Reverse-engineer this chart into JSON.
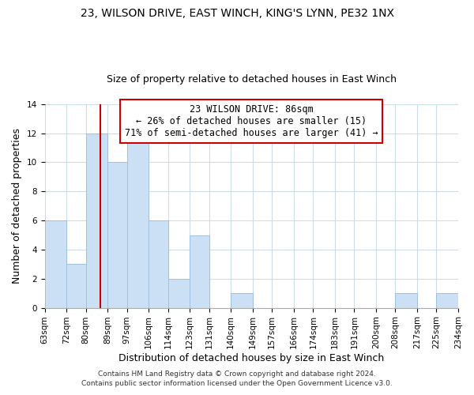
{
  "title_line1": "23, WILSON DRIVE, EAST WINCH, KING'S LYNN, PE32 1NX",
  "title_line2": "Size of property relative to detached houses in East Winch",
  "xlabel": "Distribution of detached houses by size in East Winch",
  "ylabel": "Number of detached properties",
  "bin_edges": [
    63,
    72,
    80,
    89,
    97,
    106,
    114,
    123,
    131,
    140,
    149,
    157,
    166,
    174,
    183,
    191,
    200,
    208,
    217,
    225,
    234
  ],
  "bin_labels": [
    "63sqm",
    "72sqm",
    "80sqm",
    "89sqm",
    "97sqm",
    "106sqm",
    "114sqm",
    "123sqm",
    "131sqm",
    "140sqm",
    "149sqm",
    "157sqm",
    "166sqm",
    "174sqm",
    "183sqm",
    "191sqm",
    "200sqm",
    "208sqm",
    "217sqm",
    "225sqm",
    "234sqm"
  ],
  "counts": [
    6,
    3,
    12,
    10,
    12,
    6,
    2,
    5,
    0,
    1,
    0,
    0,
    0,
    0,
    0,
    0,
    0,
    1,
    0,
    1
  ],
  "bar_color": "#cce0f5",
  "bar_edgecolor": "#a0c0e0",
  "vline_color": "#cc0000",
  "vline_x": 86,
  "annotation_title": "23 WILSON DRIVE: 86sqm",
  "annotation_line2": "← 26% of detached houses are smaller (15)",
  "annotation_line3": "71% of semi-detached houses are larger (41) →",
  "annotation_box_edgecolor": "#cc0000",
  "annotation_box_facecolor": "#ffffff",
  "ylim": [
    0,
    14
  ],
  "yticks": [
    0,
    2,
    4,
    6,
    8,
    10,
    12,
    14
  ],
  "footer_line1": "Contains HM Land Registry data © Crown copyright and database right 2024.",
  "footer_line2": "Contains public sector information licensed under the Open Government Licence v3.0.",
  "background_color": "#ffffff",
  "grid_color": "#ccdde8",
  "title_fontsize": 10,
  "subtitle_fontsize": 9,
  "axis_label_fontsize": 9,
  "tick_fontsize": 7.5,
  "annotation_fontsize": 8.5,
  "footer_fontsize": 6.5
}
